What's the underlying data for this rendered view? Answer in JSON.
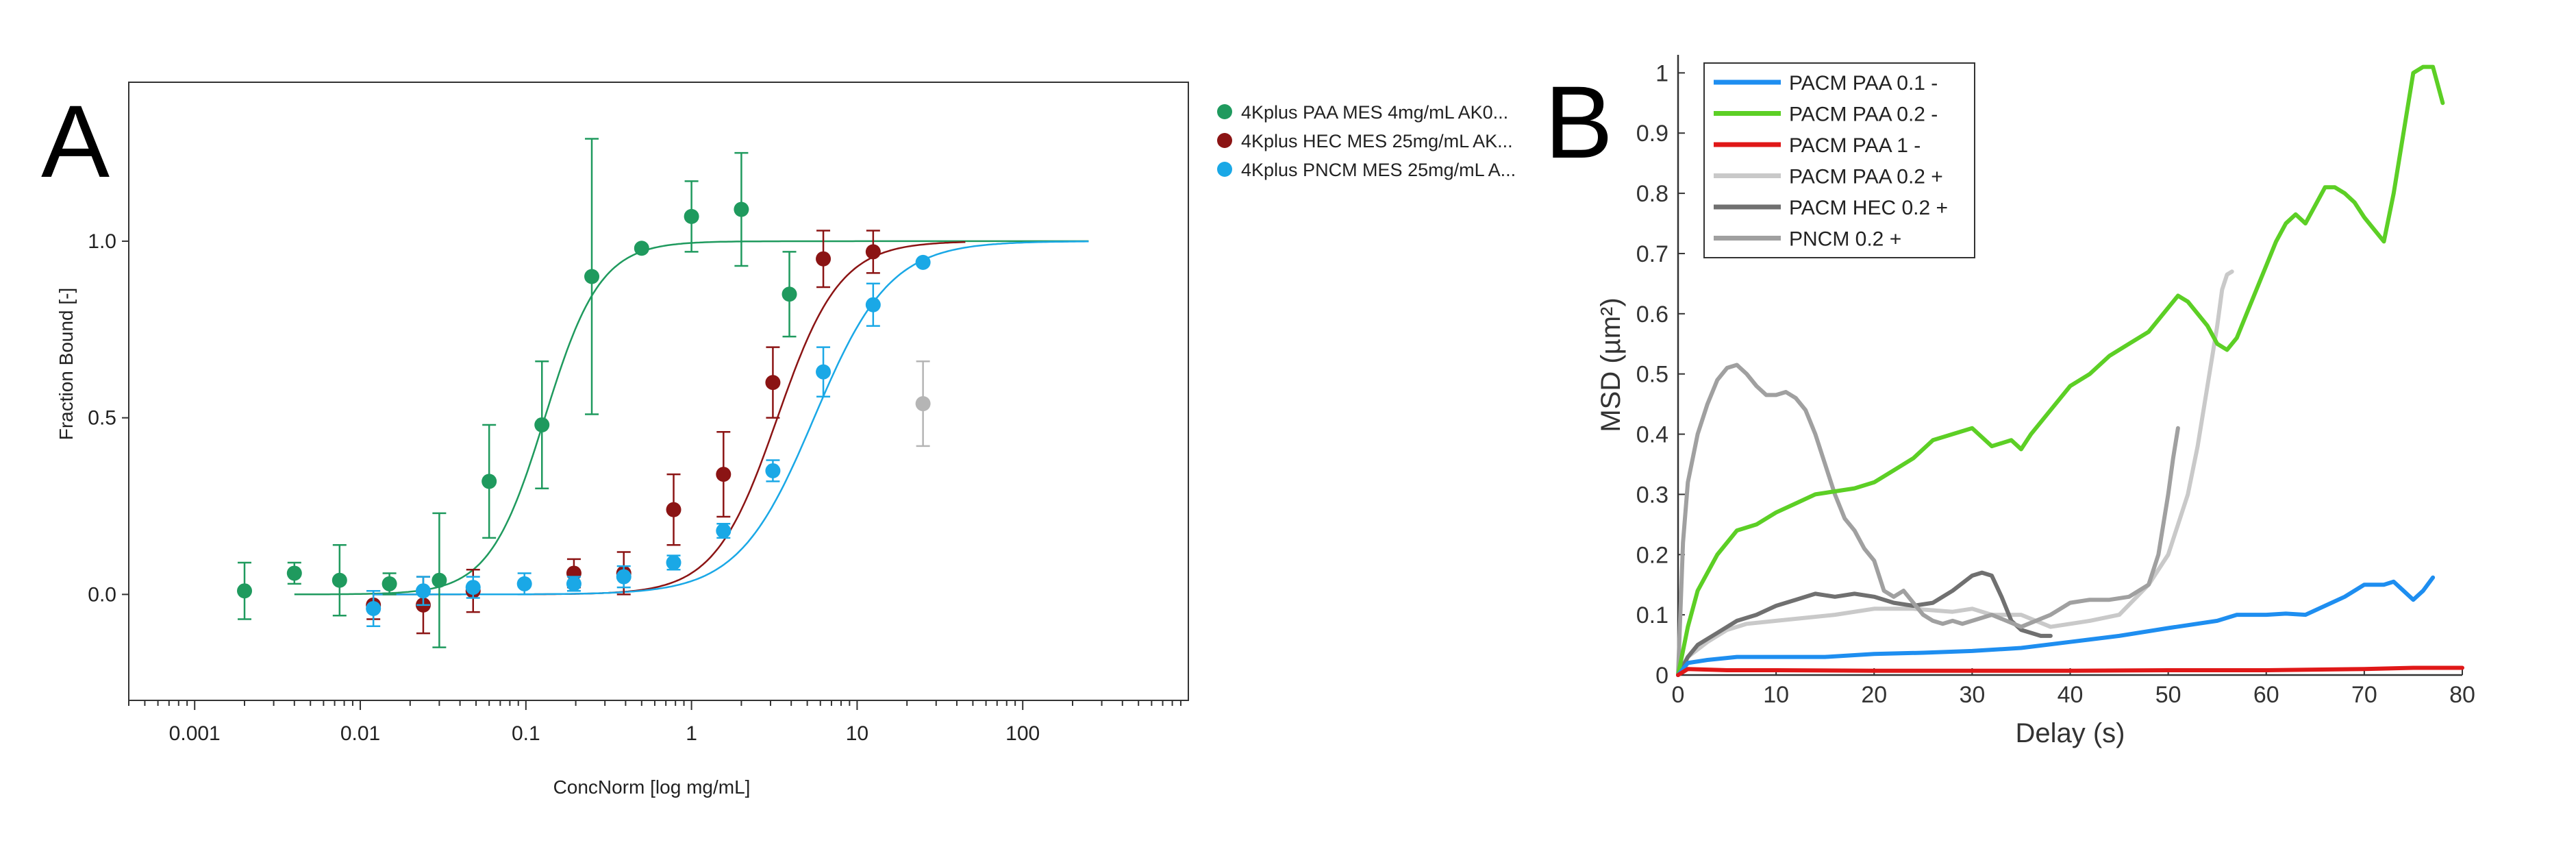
{
  "panel_letters": {
    "a": "A",
    "b": "B"
  },
  "chart_data": [
    {
      "type": "scatter",
      "panel": "A",
      "xlabel": "ConcNorm [log mg/mL]",
      "ylabel": "Fraction Bound [-]",
      "xscale": "log",
      "xlim": [
        0.0004,
        1000
      ],
      "ylim": [
        -0.3,
        1.45
      ],
      "x_ticks": [
        0.001,
        0.01,
        0.1,
        1,
        10,
        100
      ],
      "x_tick_labels": [
        "0.001",
        "0.01",
        "0.1",
        "1",
        "10",
        "100"
      ],
      "y_ticks": [
        0.0,
        0.5,
        1.0
      ],
      "y_tick_labels": [
        "0.0",
        "0.5",
        "1.0"
      ],
      "grid": false,
      "legend_position": "right",
      "series": [
        {
          "name": "4Kplus PAA MES 4mg/mL AK0...",
          "color": "#1f9a5e",
          "fit": {
            "ec50": 0.13,
            "hill": 2.6,
            "x_range": [
              0.004,
              250
            ]
          },
          "points": [
            {
              "x": 0.002,
              "y": 0.01,
              "err": 0.08
            },
            {
              "x": 0.004,
              "y": 0.06,
              "err": 0.03
            },
            {
              "x": 0.0075,
              "y": 0.04,
              "err": 0.1
            },
            {
              "x": 0.015,
              "y": 0.03,
              "err": 0.03
            },
            {
              "x": 0.03,
              "y": 0.04,
              "err": 0.19
            },
            {
              "x": 0.06,
              "y": 0.32,
              "err": 0.16
            },
            {
              "x": 0.125,
              "y": 0.48,
              "err": 0.18
            },
            {
              "x": 0.25,
              "y": 0.9,
              "err": 0.39
            },
            {
              "x": 0.5,
              "y": 0.98,
              "err": 0.0
            },
            {
              "x": 1.0,
              "y": 1.07,
              "err": 0.1
            },
            {
              "x": 2.0,
              "y": 1.09,
              "err": 0.16
            },
            {
              "x": 3.9,
              "y": 0.85,
              "err": 0.12
            }
          ]
        },
        {
          "name": "4Kplus HEC MES 25mg/mL AK...",
          "color": "#8b1414",
          "fit": {
            "ec50": 3.3,
            "hill": 2.3,
            "x_range": [
              0.012,
              45
            ]
          },
          "points": [
            {
              "x": 0.012,
              "y": -0.03,
              "err": 0.04
            },
            {
              "x": 0.024,
              "y": -0.03,
              "err": 0.08
            },
            {
              "x": 0.048,
              "y": 0.01,
              "err": 0.06
            },
            {
              "x": 0.195,
              "y": 0.06,
              "err": 0.04
            },
            {
              "x": 0.39,
              "y": 0.06,
              "err": 0.06
            },
            {
              "x": 0.78,
              "y": 0.24,
              "err": 0.1
            },
            {
              "x": 1.56,
              "y": 0.34,
              "err": 0.12
            },
            {
              "x": 3.1,
              "y": 0.6,
              "err": 0.1
            },
            {
              "x": 6.25,
              "y": 0.95,
              "err": 0.08
            },
            {
              "x": 12.5,
              "y": 0.97,
              "err": 0.06
            }
          ]
        },
        {
          "name": "4Kplus PNCM MES 25mg/mL A...",
          "color": "#1aa8e6",
          "fit": {
            "ec50": 5.5,
            "hill": 1.9,
            "x_range": [
              0.012,
              250
            ]
          },
          "points": [
            {
              "x": 0.012,
              "y": -0.04,
              "err": 0.05
            },
            {
              "x": 0.024,
              "y": 0.01,
              "err": 0.04
            },
            {
              "x": 0.048,
              "y": 0.02,
              "err": 0.03
            },
            {
              "x": 0.098,
              "y": 0.03,
              "err": 0.03
            },
            {
              "x": 0.195,
              "y": 0.03,
              "err": 0.02
            },
            {
              "x": 0.39,
              "y": 0.05,
              "err": 0.03
            },
            {
              "x": 0.78,
              "y": 0.09,
              "err": 0.02
            },
            {
              "x": 1.56,
              "y": 0.18,
              "err": 0.02
            },
            {
              "x": 3.1,
              "y": 0.35,
              "err": 0.03
            },
            {
              "x": 6.25,
              "y": 0.63,
              "err": 0.07
            },
            {
              "x": 12.5,
              "y": 0.82,
              "err": 0.06
            },
            {
              "x": 25.0,
              "y": 0.94,
              "err": 0.0
            }
          ]
        }
      ],
      "excluded_points": [
        {
          "x": 25.0,
          "y": 0.54,
          "err": 0.12,
          "color": "#b5b5b5"
        }
      ]
    },
    {
      "type": "line",
      "panel": "B",
      "xlabel": "Delay (s)",
      "ylabel": "MSD (µm²)",
      "xlim": [
        0,
        80
      ],
      "ylim": [
        0,
        1.03
      ],
      "x_ticks": [
        0,
        10,
        20,
        30,
        40,
        50,
        60,
        70,
        80
      ],
      "x_tick_labels": [
        "0",
        "10",
        "20",
        "30",
        "40",
        "50",
        "60",
        "70",
        "80"
      ],
      "y_ticks": [
        0,
        0.1,
        0.2,
        0.3,
        0.4,
        0.5,
        0.6,
        0.7,
        0.8,
        0.9,
        1
      ],
      "y_tick_labels": [
        "0",
        "0.1",
        "0.2",
        "0.3",
        "0.4",
        "0.5",
        "0.6",
        "0.7",
        "0.8",
        "0.9",
        "1"
      ],
      "grid": false,
      "legend_position": "top-left",
      "series": [
        {
          "name": "PACM PAA 0.1 -",
          "color": "#1e8ef0",
          "x": [
            0,
            1,
            3,
            6,
            10,
            15,
            20,
            25,
            30,
            35,
            40,
            45,
            50,
            55,
            57,
            60,
            62,
            64,
            66,
            68,
            70,
            72,
            73,
            74,
            75,
            76,
            77
          ],
          "y": [
            0.0,
            0.02,
            0.025,
            0.03,
            0.03,
            0.03,
            0.035,
            0.037,
            0.04,
            0.045,
            0.055,
            0.065,
            0.078,
            0.09,
            0.1,
            0.1,
            0.102,
            0.1,
            0.115,
            0.13,
            0.15,
            0.15,
            0.155,
            0.14,
            0.125,
            0.14,
            0.162
          ]
        },
        {
          "name": "PACM PAA 0.2 -",
          "color": "#5ccf25",
          "x": [
            0,
            1,
            2,
            4,
            6,
            8,
            10,
            12,
            14,
            16,
            18,
            20,
            22,
            24,
            26,
            28,
            30,
            31,
            32,
            34,
            35,
            36,
            38,
            40,
            42,
            44,
            46,
            48,
            50,
            51,
            52,
            54,
            55,
            56,
            57,
            58,
            59,
            60,
            61,
            62,
            63,
            64,
            65,
            66,
            67,
            68,
            69,
            70,
            71,
            72,
            73,
            74,
            75,
            76,
            77,
            78
          ],
          "y": [
            0.0,
            0.08,
            0.14,
            0.2,
            0.24,
            0.25,
            0.27,
            0.285,
            0.3,
            0.305,
            0.31,
            0.32,
            0.34,
            0.36,
            0.39,
            0.4,
            0.41,
            0.395,
            0.38,
            0.39,
            0.375,
            0.4,
            0.44,
            0.48,
            0.5,
            0.53,
            0.55,
            0.57,
            0.61,
            0.63,
            0.62,
            0.58,
            0.55,
            0.54,
            0.56,
            0.6,
            0.64,
            0.68,
            0.72,
            0.75,
            0.765,
            0.75,
            0.78,
            0.81,
            0.81,
            0.8,
            0.785,
            0.76,
            0.74,
            0.72,
            0.8,
            0.9,
            1.0,
            1.01,
            1.01,
            0.95
          ]
        },
        {
          "name": "PACM PAA 1 -",
          "color": "#e01818",
          "x": [
            0,
            1,
            5,
            10,
            20,
            30,
            40,
            50,
            60,
            70,
            75,
            80
          ],
          "y": [
            0.0,
            0.01,
            0.008,
            0.008,
            0.007,
            0.007,
            0.007,
            0.008,
            0.008,
            0.01,
            0.012,
            0.012
          ]
        },
        {
          "name": "PACM PAA 0.2 +",
          "color": "#c9c9c9",
          "x": [
            0,
            1,
            3,
            5,
            7,
            10,
            13,
            16,
            20,
            24,
            28,
            30,
            32,
            35,
            38,
            40,
            42,
            45,
            48,
            50,
            52,
            53,
            54,
            55,
            55.5,
            56,
            56.5
          ],
          "y": [
            0.0,
            0.03,
            0.055,
            0.075,
            0.085,
            0.09,
            0.095,
            0.1,
            0.11,
            0.11,
            0.105,
            0.11,
            0.1,
            0.1,
            0.08,
            0.085,
            0.09,
            0.1,
            0.15,
            0.2,
            0.3,
            0.38,
            0.48,
            0.58,
            0.64,
            0.665,
            0.67
          ]
        },
        {
          "name": "PACM HEC 0.2 +",
          "color": "#707070",
          "x": [
            0,
            1,
            2,
            4,
            6,
            8,
            10,
            12,
            14,
            16,
            18,
            20,
            22,
            24,
            26,
            28,
            30,
            31,
            32,
            33,
            34,
            35,
            36,
            37,
            38
          ],
          "y": [
            0.0,
            0.03,
            0.05,
            0.07,
            0.09,
            0.1,
            0.115,
            0.125,
            0.135,
            0.13,
            0.135,
            0.13,
            0.12,
            0.115,
            0.12,
            0.14,
            0.165,
            0.17,
            0.165,
            0.13,
            0.09,
            0.075,
            0.07,
            0.065,
            0.065
          ]
        },
        {
          "name": "PNCM 0.2 +",
          "color": "#a0a0a0",
          "x": [
            0,
            0.5,
            1,
            2,
            3,
            4,
            5,
            6,
            7,
            8,
            9,
            10,
            11,
            12,
            13,
            14,
            15,
            16,
            17,
            18,
            19,
            20,
            21,
            22,
            23,
            24,
            25,
            26,
            27,
            28,
            29,
            30,
            32,
            35,
            38,
            40,
            42,
            44,
            46,
            48,
            49,
            50,
            50.5,
            51
          ],
          "y": [
            0.0,
            0.22,
            0.32,
            0.4,
            0.45,
            0.49,
            0.51,
            0.515,
            0.5,
            0.48,
            0.465,
            0.465,
            0.47,
            0.46,
            0.44,
            0.4,
            0.35,
            0.3,
            0.26,
            0.24,
            0.21,
            0.19,
            0.14,
            0.13,
            0.14,
            0.12,
            0.1,
            0.09,
            0.085,
            0.09,
            0.085,
            0.09,
            0.1,
            0.08,
            0.1,
            0.12,
            0.125,
            0.125,
            0.13,
            0.15,
            0.2,
            0.3,
            0.36,
            0.41
          ]
        }
      ]
    }
  ]
}
